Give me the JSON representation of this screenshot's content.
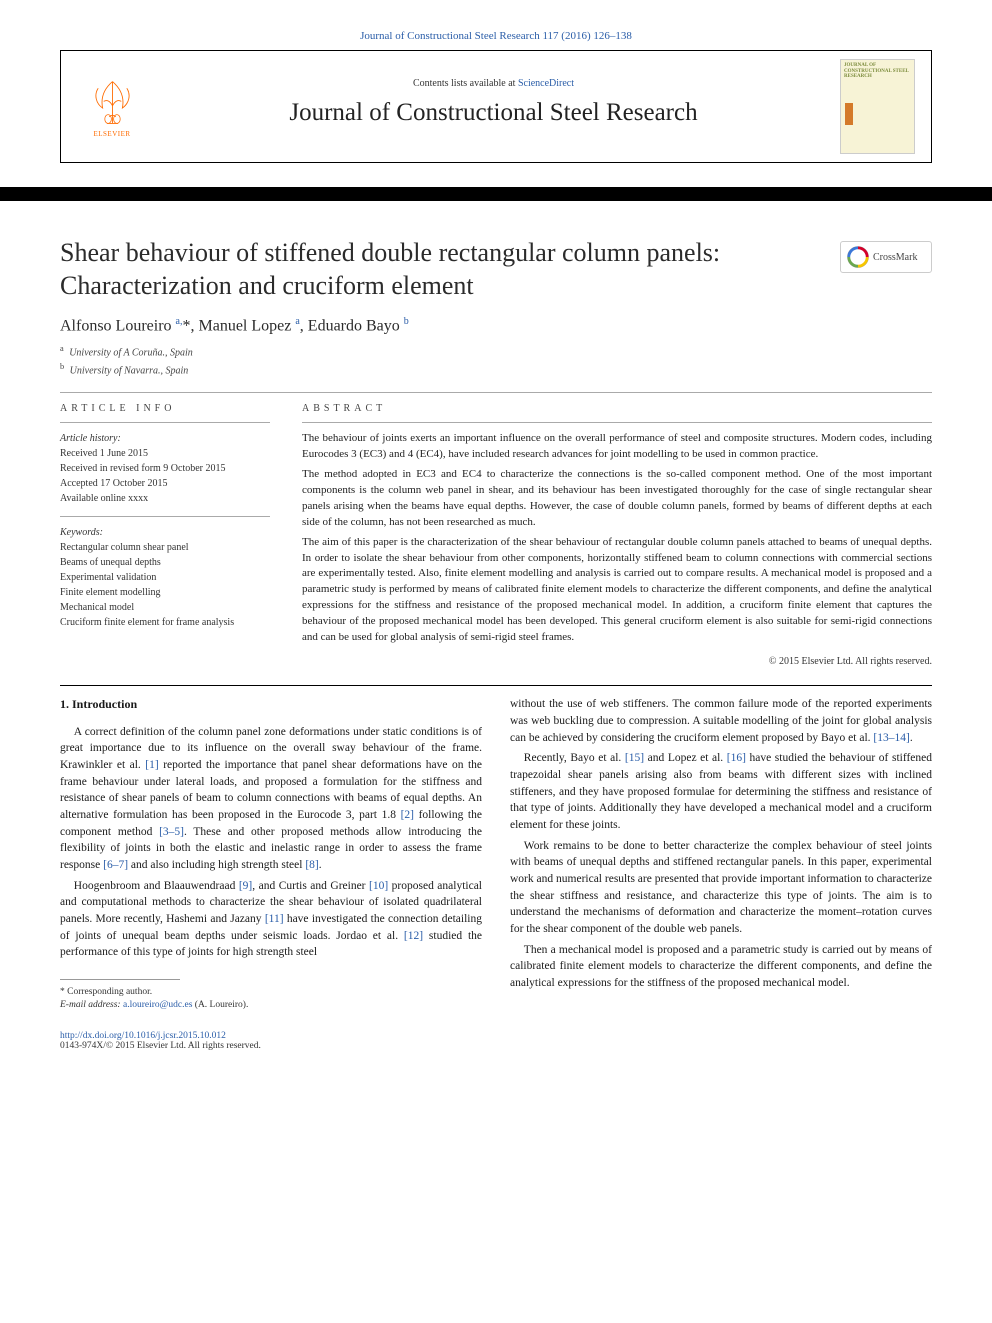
{
  "citation": "Journal of Constructional Steel Research 117 (2016) 126–138",
  "header": {
    "elsevier_label": "ELSEVIER",
    "contents_prefix": "Contents lists available at ",
    "contents_link": "ScienceDirect",
    "journal_name": "Journal of Constructional Steel Research",
    "cover_title": "JOURNAL OF\nCONSTRUCTIONAL\nSTEEL RESEARCH"
  },
  "crossmark_label": "CrossMark",
  "article": {
    "title": "Shear behaviour of stiffened double rectangular column panels: Characterization and cruciform element",
    "authors_html": "Alfonso Loureiro <sup>a,</sup>*, Manuel Lopez <sup>a</sup>, Eduardo Bayo <sup>b</sup>",
    "affiliations": [
      {
        "sup": "a",
        "text": "University of A Coruña., Spain"
      },
      {
        "sup": "b",
        "text": "University of Navarra., Spain"
      }
    ]
  },
  "article_info": {
    "label": "article info",
    "history_title": "Article history:",
    "history": [
      "Received 1 June 2015",
      "Received in revised form 9 October 2015",
      "Accepted 17 October 2015",
      "Available online xxxx"
    ],
    "keywords_title": "Keywords:",
    "keywords": [
      "Rectangular column shear panel",
      "Beams of unequal depths",
      "Experimental validation",
      "Finite element modelling",
      "Mechanical model",
      "Cruciform finite element for frame analysis"
    ]
  },
  "abstract": {
    "label": "abstract",
    "paragraphs": [
      "The behaviour of joints exerts an important influence on the overall performance of steel and composite structures. Modern codes, including Eurocodes 3 (EC3) and 4 (EC4), have included research advances for joint modelling to be used in common practice.",
      "The method adopted in EC3 and EC4 to characterize the connections is the so-called component method. One of the most important components is the column web panel in shear, and its behaviour has been investigated thoroughly for the case of single rectangular shear panels arising when the beams have equal depths. However, the case of double column panels, formed by beams of different depths at each side of the column, has not been researched as much.",
      "The aim of this paper is the characterization of the shear behaviour of rectangular double column panels attached to beams of unequal depths. In order to isolate the shear behaviour from other components, horizontally stiffened beam to column connections with commercial sections are experimentally tested. Also, finite element modelling and analysis is carried out to compare results. A mechanical model is proposed and a parametric study is performed by means of calibrated finite element models to characterize the different components, and define the analytical expressions for the stiffness and resistance of the proposed mechanical model. In addition, a cruciform finite element that captures the behaviour of the proposed mechanical model has been developed. This general cruciform element is also suitable for semi-rigid connections and can be used for global analysis of semi-rigid steel frames."
    ],
    "copyright": "© 2015 Elsevier Ltd. All rights reserved."
  },
  "body": {
    "section_title": "1. Introduction",
    "left_paragraphs": [
      "A correct definition of the column panel zone deformations under static conditions is of great importance due to its influence on the overall sway behaviour of the frame. Krawinkler et al. <span class=\"ref\">[1]</span> reported the importance that panel shear deformations have on the frame behaviour under lateral loads, and proposed a formulation for the stiffness and resistance of shear panels of beam to column connections with beams of equal depths. An alternative formulation has been proposed in the Eurocode 3, part 1.8 <span class=\"ref\">[2]</span> following the component method <span class=\"ref\">[3–5]</span>. These and other proposed methods allow introducing the flexibility of joints in both the elastic and inelastic range in order to assess the frame response <span class=\"ref\">[6–7]</span> and also including high strength steel <span class=\"ref\">[8]</span>.",
      "Hoogenbroom and Blaauwendraad <span class=\"ref\">[9]</span>, and Curtis and Greiner <span class=\"ref\">[10]</span> proposed analytical and computational methods to characterize the shear behaviour of isolated quadrilateral panels. More recently, Hashemi and Jazany <span class=\"ref\">[11]</span> have investigated the connection detailing of joints of unequal beam depths under seismic loads. Jordao et al. <span class=\"ref\">[12]</span> studied the performance of this type of joints for high strength steel"
    ],
    "right_paragraphs": [
      "without the use of web stiffeners. The common failure mode of the reported experiments was web buckling due to compression. A suitable modelling of the joint for global analysis can be achieved by considering the cruciform element proposed by Bayo et al. <span class=\"ref\">[13–14]</span>.",
      "Recently, Bayo et al. <span class=\"ref\">[15]</span> and Lopez et al. <span class=\"ref\">[16]</span> have studied the behaviour of stiffened trapezoidal shear panels arising also from beams with different sizes with inclined stiffeners, and they have proposed formulae for determining the stiffness and resistance of that type of joints. Additionally they have developed a mechanical model and a cruciform element for these joints.",
      "Work remains to be done to better characterize the complex behaviour of steel joints with beams of unequal depths and stiffened rectangular panels. In this paper, experimental work and numerical results are presented that provide important information to characterize the shear stiffness and resistance, and characterize this type of joints. The aim is to understand the mechanisms of deformation and characterize the moment–rotation curves for the shear component of the double web panels.",
      "Then a mechanical model is proposed and a parametric study is carried out by means of calibrated finite element models to characterize the different components, and define the analytical expressions for the stiffness of the proposed mechanical model."
    ]
  },
  "footnote": {
    "corresponding": "* Corresponding author.",
    "email_label": "E-mail address:",
    "email": "a.loureiro@udc.es",
    "email_person": "(A. Loureiro)."
  },
  "footer": {
    "doi": "http://dx.doi.org/10.1016/j.jcsr.2015.10.012",
    "issn": "0143-974X/© 2015 Elsevier Ltd. All rights reserved."
  },
  "colors": {
    "link": "#2a5da8",
    "elsevier_orange": "#ff6b00",
    "text": "#1a1a1a"
  }
}
